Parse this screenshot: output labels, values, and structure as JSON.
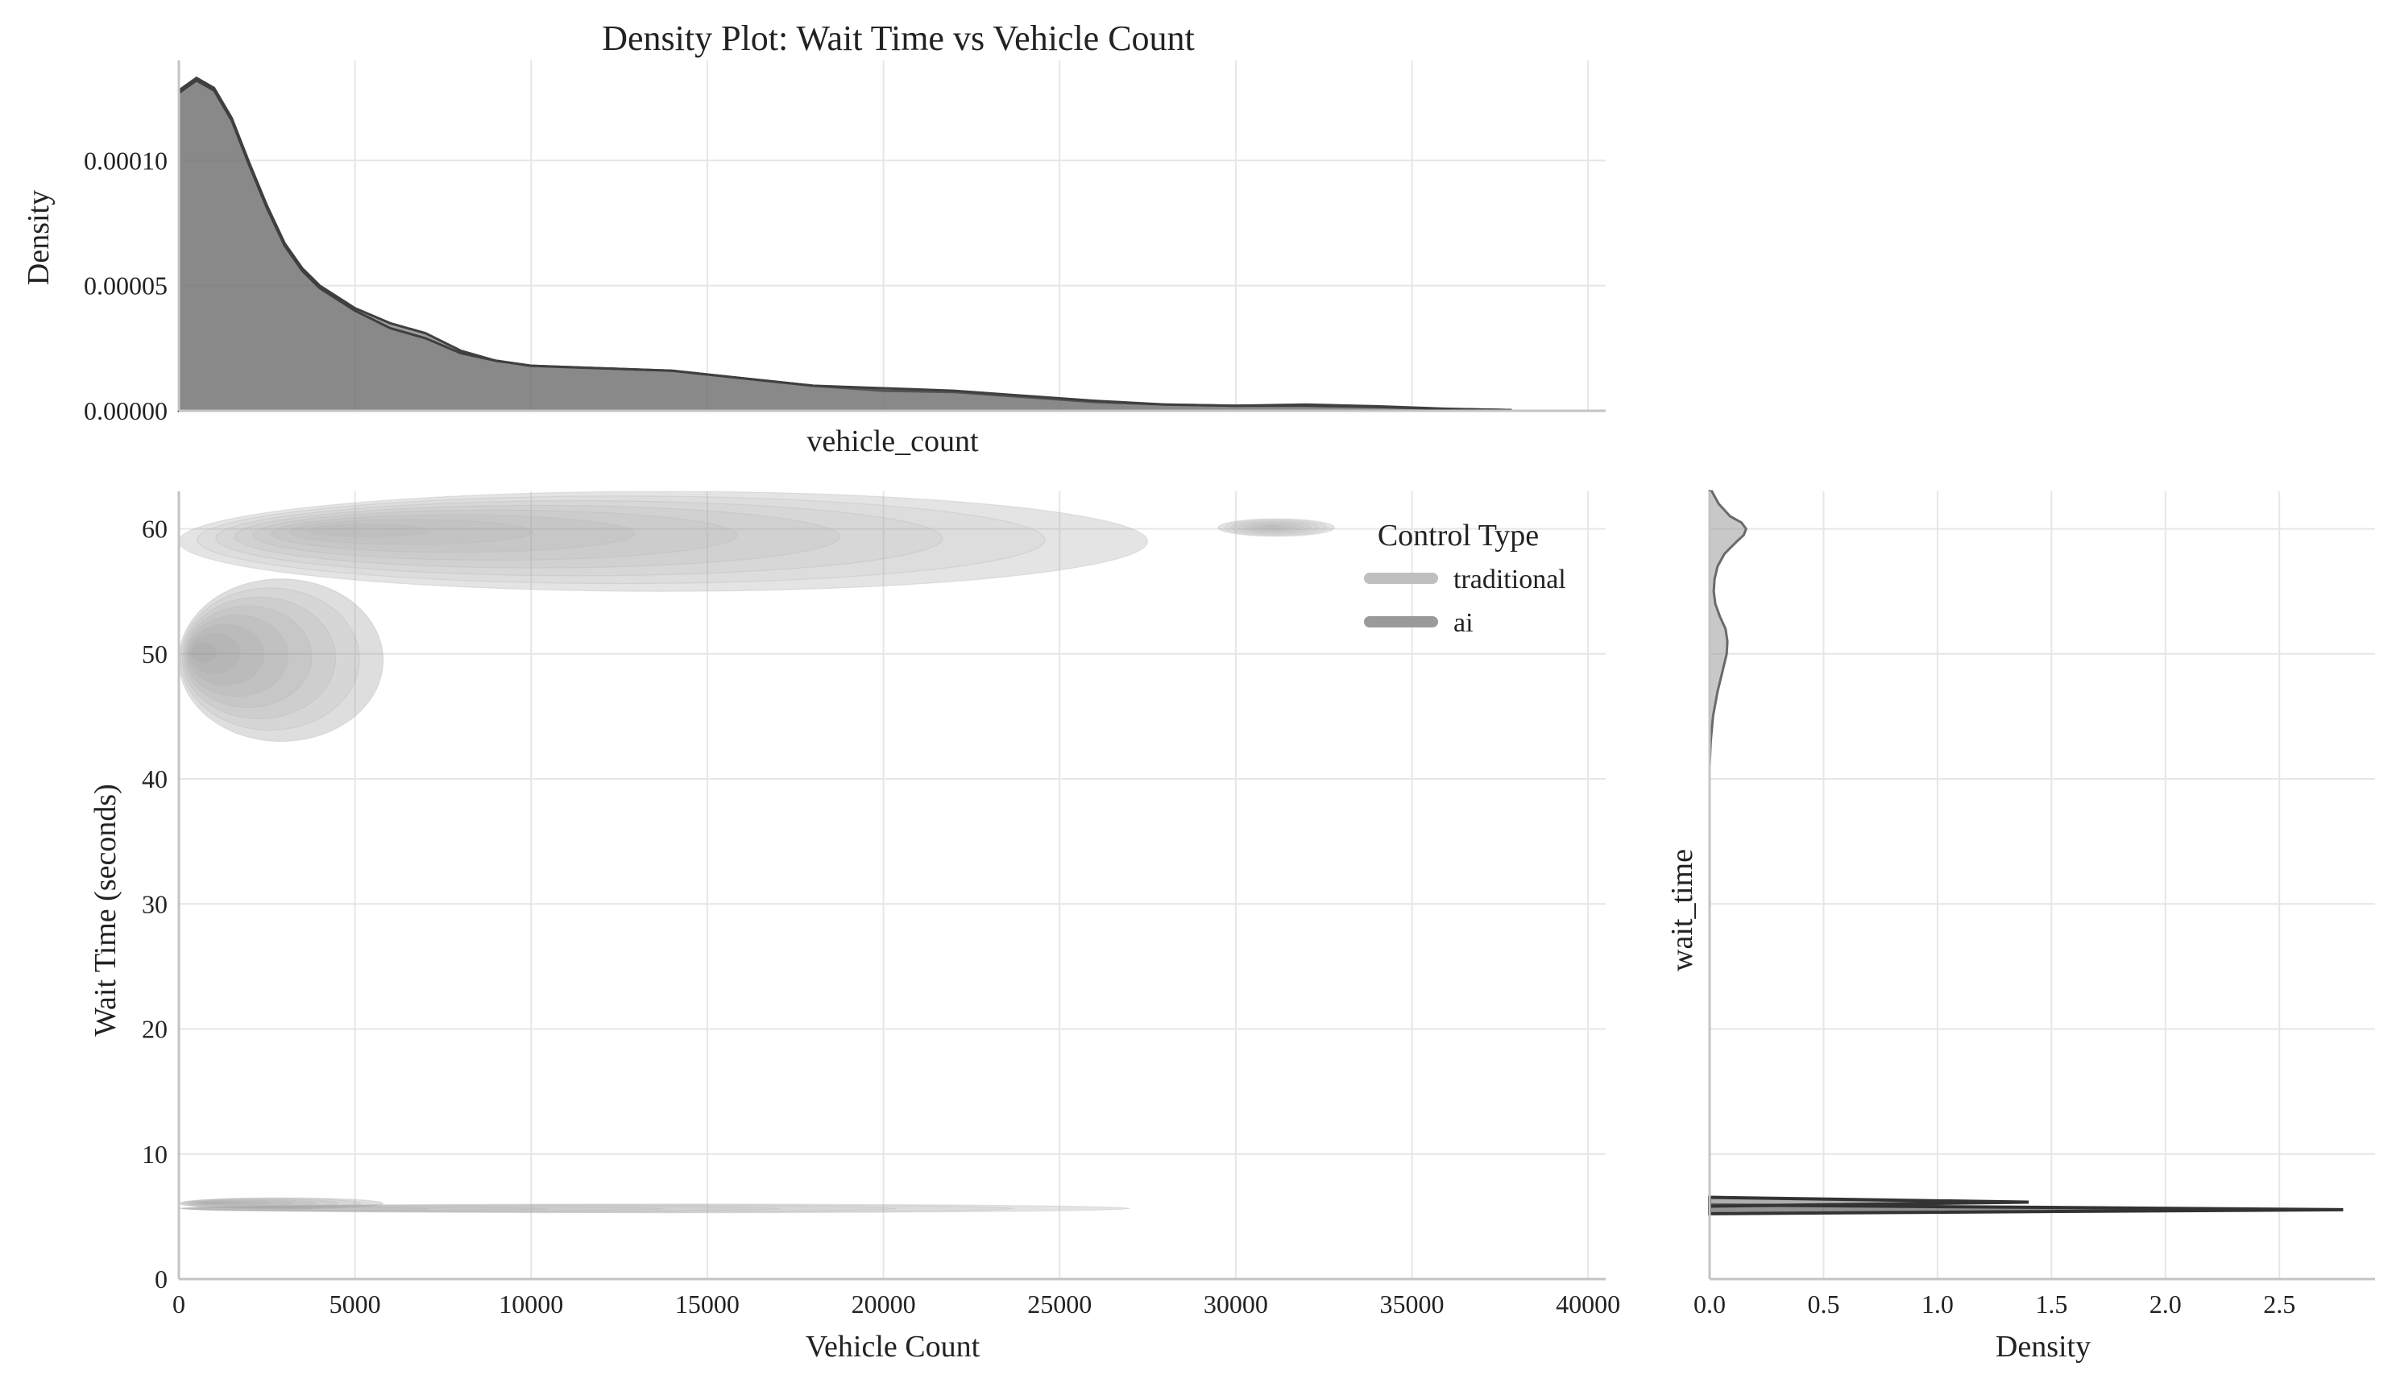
{
  "chart_data": {
    "type": "density",
    "title": "Density Plot: Wait Time vs Vehicle Count",
    "joint": {
      "type": "kde2d",
      "xlabel": "Vehicle Count",
      "ylabel": "Wait Time (seconds)",
      "xlim": [
        0,
        40500
      ],
      "ylim": [
        0,
        63
      ],
      "xticks": [
        0,
        5000,
        10000,
        15000,
        20000,
        25000,
        30000,
        35000,
        40000
      ],
      "yticks": [
        0,
        10,
        20,
        30,
        40,
        50,
        60
      ],
      "legend": {
        "title": "Control Type",
        "placement": "top-right",
        "entries": [
          {
            "name": "traditional",
            "color": "#bfbfbf"
          },
          {
            "name": "ai",
            "color": "#9a9a9a"
          }
        ]
      },
      "regions": [
        {
          "series": "traditional",
          "x_range": [
            0,
            27000
          ],
          "y_range": [
            5.3,
            6.0
          ],
          "peak": [
            500,
            5.6
          ]
        },
        {
          "series": "ai",
          "x_range": [
            0,
            5800
          ],
          "y_range": [
            5.6,
            6.5
          ],
          "peak": [
            700,
            6.1
          ]
        },
        {
          "series": "traditional",
          "x_range": [
            0,
            27500
          ],
          "y_range": [
            55,
            63
          ],
          "peak": [
            4200,
            60
          ]
        },
        {
          "series": "traditional",
          "x_range": [
            29500,
            32800
          ],
          "y_range": [
            59.4,
            60.8
          ],
          "peak": [
            31000,
            60.1
          ]
        },
        {
          "series": "ai",
          "x_range": [
            0,
            5800
          ],
          "y_range": [
            43,
            56
          ],
          "peak": [
            400,
            50.2
          ]
        }
      ]
    },
    "marginal_x": {
      "type": "area",
      "xlabel": "vehicle_count",
      "ylabel": "Density",
      "ylim": [
        0,
        0.00014
      ],
      "yticks": [
        0,
        5e-05,
        0.0001
      ],
      "ytick_labels": [
        "0.00000",
        "0.00005",
        "0.00010"
      ],
      "x": [
        0,
        500,
        1000,
        1500,
        2000,
        2500,
        3000,
        3500,
        4000,
        5000,
        6000,
        7000,
        8000,
        9000,
        10000,
        12000,
        14000,
        16000,
        18000,
        20000,
        22000,
        24000,
        26000,
        28000,
        30000,
        32000,
        34000,
        36000,
        37800
      ],
      "series": [
        {
          "name": "traditional",
          "values": [
            0.000128,
            0.000133,
            0.000129,
            0.000117,
            9.9e-05,
            8.2e-05,
            6.7e-05,
            5.7e-05,
            5e-05,
            4.1e-05,
            3.5e-05,
            3.1e-05,
            2.4e-05,
            2e-05,
            1.8e-05,
            1.7e-05,
            1.6e-05,
            1.3e-05,
            1e-05,
            8e-06,
            7.5e-06,
            5.5e-06,
            3.5e-06,
            2.5e-06,
            2e-06,
            2.5e-06,
            1.8e-06,
            8e-07,
            3e-07
          ]
        },
        {
          "name": "ai",
          "values": [
            0.000127,
            0.000132,
            0.000128,
            0.000116,
            9.8e-05,
            8.1e-05,
            6.6e-05,
            5.6e-05,
            4.9e-05,
            4e-05,
            3.3e-05,
            2.9e-05,
            2.3e-05,
            2e-05,
            1.8e-05,
            1.7e-05,
            1.6e-05,
            1.3e-05,
            1e-05,
            9e-06,
            8e-06,
            6e-06,
            4e-06,
            2.5e-06,
            2e-06,
            2e-06,
            1.5e-06,
            7e-07,
            3e-07
          ]
        }
      ]
    },
    "marginal_y": {
      "type": "area",
      "xlabel": "Density",
      "ylabel": "wait_time",
      "xlim": [
        0,
        2.92
      ],
      "xticks": [
        0,
        0.5,
        1,
        1.5,
        2,
        2.5
      ],
      "xtick_labels": [
        "0.0",
        "0.5",
        "1.0",
        "1.5",
        "2.0",
        "2.5"
      ],
      "y": [
        41,
        43,
        45,
        47,
        48.5,
        50,
        51,
        52,
        53,
        54,
        55,
        56,
        57,
        58,
        59,
        59.5,
        60,
        60.5,
        61,
        62,
        63
      ],
      "series": [
        {
          "name": "ai",
          "values": [
            0,
            0.005,
            0.015,
            0.035,
            0.055,
            0.075,
            0.078,
            0.07,
            0.045,
            0.025,
            0.018,
            0.022,
            0.035,
            0.065,
            0.12,
            0.15,
            0.16,
            0.14,
            0.09,
            0.04,
            0.01
          ]
        }
      ],
      "spikes": [
        {
          "name": "traditional",
          "y": 5.55,
          "value": 2.78
        },
        {
          "name": "ai",
          "y": 6.15,
          "value": 1.4
        }
      ]
    }
  }
}
